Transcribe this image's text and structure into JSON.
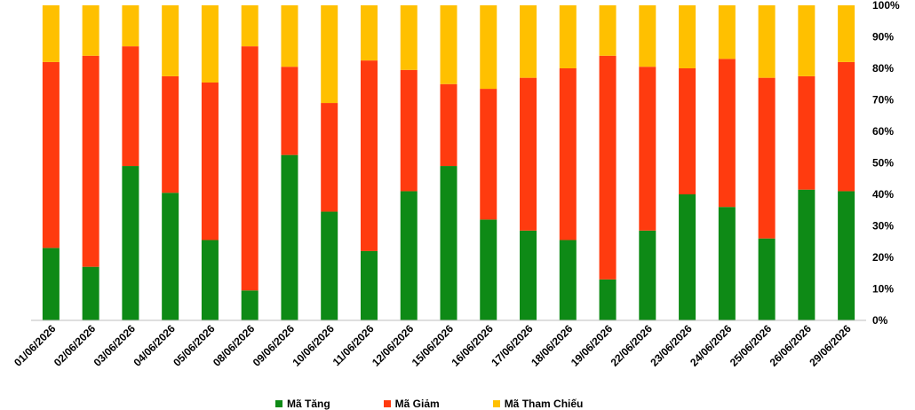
{
  "chart_data": {
    "type": "bar",
    "stacked": true,
    "percent": true,
    "categories": [
      "01/06/2026",
      "02/06/2026",
      "03/06/2026",
      "04/06/2026",
      "05/06/2026",
      "08/06/2026",
      "09/06/2026",
      "10/06/2026",
      "11/06/2026",
      "12/06/2026",
      "15/06/2026",
      "16/06/2026",
      "17/06/2026",
      "18/06/2026",
      "19/06/2026",
      "22/06/2026",
      "23/06/2026",
      "24/06/2026",
      "25/06/2026",
      "26/06/2026",
      "29/06/2026"
    ],
    "series": [
      {
        "name": "Mã Tăng",
        "color": "#0e8a16",
        "values": [
          23,
          17,
          49,
          40.5,
          25.5,
          9.5,
          52.5,
          34.5,
          22,
          41,
          49,
          32,
          28.5,
          25.5,
          13,
          28.5,
          40,
          36,
          26,
          41.5,
          41
        ]
      },
      {
        "name": "Mã Giảm",
        "color": "#ff3b0f",
        "values": [
          59,
          67,
          38,
          37,
          50,
          77.5,
          28,
          34.5,
          60.5,
          38.5,
          26,
          41.5,
          48.5,
          54.5,
          71,
          52,
          40,
          47,
          51,
          36,
          41
        ]
      },
      {
        "name": "Mã Tham Chiếu",
        "color": "#ffc000",
        "values": [
          18,
          16,
          13,
          22.5,
          24.5,
          13,
          19.5,
          31,
          17.5,
          20.5,
          25,
          26.5,
          23,
          20,
          16,
          19.5,
          20,
          17,
          23,
          22.5,
          18
        ]
      }
    ],
    "ylim": [
      0,
      100
    ],
    "yticks": [
      "0%",
      "10%",
      "20%",
      "30%",
      "40%",
      "50%",
      "60%",
      "70%",
      "80%",
      "90%",
      "100%"
    ],
    "grid": false,
    "legend": "bottom-center"
  }
}
